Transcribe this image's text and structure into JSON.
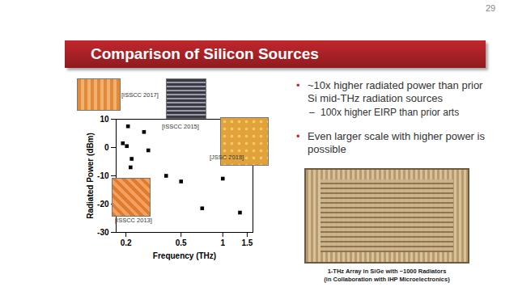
{
  "slide": {
    "page_number": "29",
    "title": "Comparison of Silicon Sources",
    "bullets": [
      {
        "text": "~10x higher radiated power than prior Si mid-THz radiation sources",
        "sub": [
          "100x higher EIRP than prior arts"
        ]
      },
      {
        "text": "Even larger scale with higher power is possible",
        "sub": []
      }
    ],
    "photo_caption": [
      "1-THz Array in SiGe with ~1000 Radiators",
      "(in Collaboration with IHP Microelectronics)"
    ]
  },
  "chart_data": {
    "type": "scatter",
    "x_label": "Frequency (THz)",
    "y_label": "Radiated Power (dBm)",
    "x": [
      0.19,
      0.203,
      0.207,
      0.22,
      0.216,
      0.27,
      0.29,
      0.39,
      0.5,
      0.71,
      1.0,
      1.33
    ],
    "values": [
      1.5,
      0.5,
      7.5,
      -4,
      -7,
      5.5,
      -1,
      -10,
      -12,
      -21.5,
      -11,
      -23
    ],
    "xlim": [
      0.17,
      1.65
    ],
    "ylim": [
      -30,
      10
    ],
    "xticks": [
      0.2,
      0.5,
      1,
      1.5
    ],
    "yticks": [
      -30,
      -20,
      -10,
      0,
      10
    ],
    "log": "x",
    "color": "#000000",
    "marker": "square",
    "annotations": [
      "[ISSCC 2017]",
      "[ISSCC 2015]",
      "[JSSC 2018]",
      "[ISSCC 2013]"
    ]
  }
}
